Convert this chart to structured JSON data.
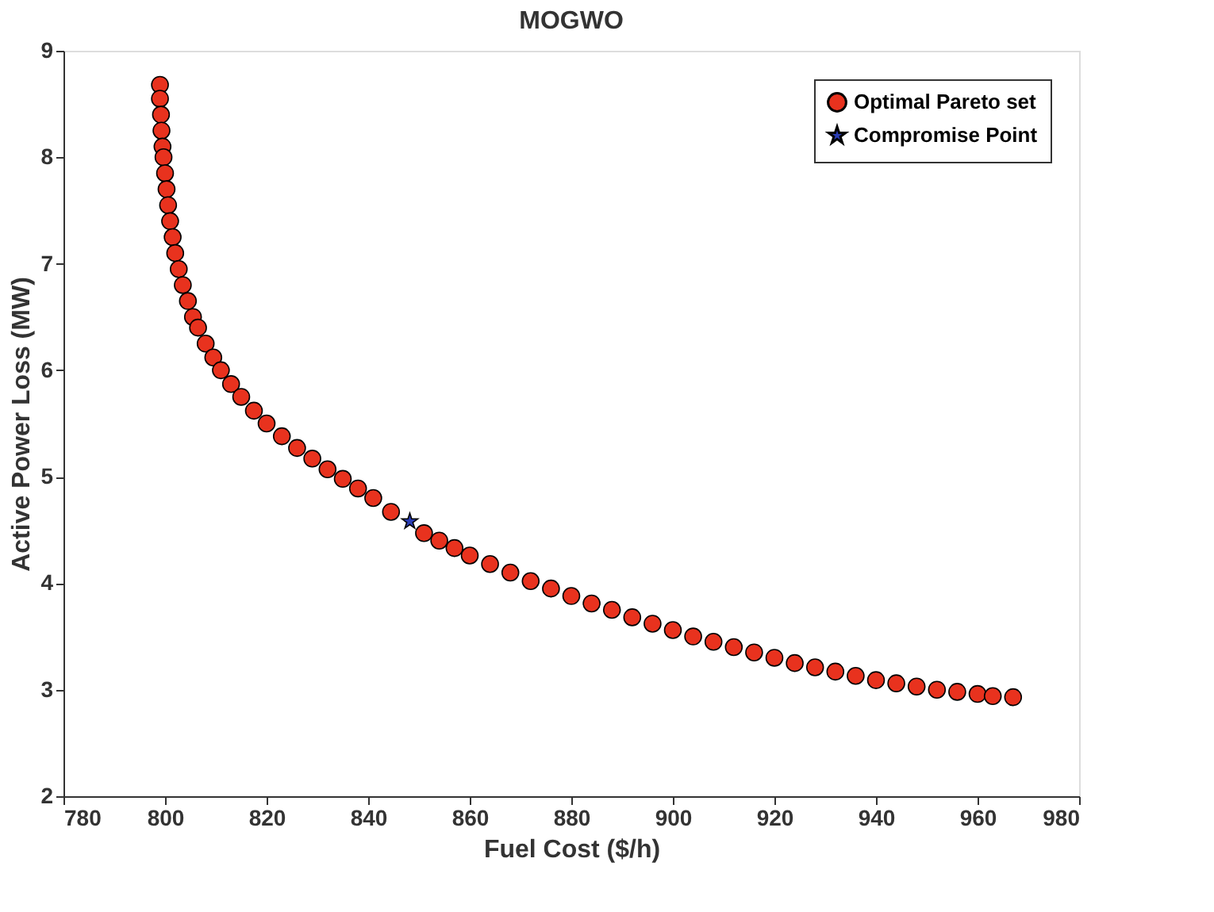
{
  "chart_data": {
    "type": "scatter",
    "title": "MOGWO",
    "xlabel": "Fuel Cost ($/h)",
    "ylabel": "Active Power Loss (MW)",
    "xlim": [
      780,
      980
    ],
    "xticks": [
      780,
      800,
      820,
      840,
      860,
      880,
      900,
      920,
      940,
      960,
      980
    ],
    "ylim": [
      2,
      9
    ],
    "yticks": [
      2,
      3,
      4,
      5,
      6,
      7,
      8,
      9
    ],
    "grid": false,
    "legend": "top right",
    "series": [
      {
        "name": "Optimal Pareto set",
        "color": "#e8321e",
        "marker": "circle",
        "x": [
          799,
          799,
          799.2,
          799.3,
          799.5,
          799.7,
          800,
          800.3,
          800.6,
          801,
          801.5,
          802,
          802.7,
          803.5,
          804.5,
          805.5,
          806.5,
          808,
          809.5,
          811,
          813,
          815,
          817.5,
          820,
          823,
          826,
          829,
          832,
          835,
          838,
          841,
          844.5,
          851,
          854,
          857,
          860,
          864,
          868,
          872,
          876,
          880,
          884,
          888,
          892,
          896,
          900,
          904,
          908,
          912,
          916,
          920,
          924,
          928,
          932,
          936,
          940,
          944,
          948,
          952,
          956,
          960,
          963,
          967
        ],
        "values": [
          8.68,
          8.55,
          8.4,
          8.25,
          8.1,
          8.0,
          7.85,
          7.7,
          7.55,
          7.4,
          7.25,
          7.1,
          6.95,
          6.8,
          6.65,
          6.5,
          6.4,
          6.25,
          6.12,
          6.0,
          5.87,
          5.75,
          5.62,
          5.5,
          5.38,
          5.27,
          5.17,
          5.07,
          4.98,
          4.89,
          4.8,
          4.67,
          4.47,
          4.4,
          4.33,
          4.26,
          4.18,
          4.1,
          4.02,
          3.95,
          3.88,
          3.81,
          3.75,
          3.68,
          3.62,
          3.56,
          3.5,
          3.45,
          3.4,
          3.35,
          3.3,
          3.25,
          3.21,
          3.17,
          3.13,
          3.09,
          3.06,
          3.03,
          3.0,
          2.98,
          2.96,
          2.94,
          2.93
        ]
      },
      {
        "name": "Compromise Point",
        "color": "#2a3db5",
        "marker": "star",
        "x": [
          848.2
        ],
        "values": [
          4.58
        ]
      }
    ]
  }
}
